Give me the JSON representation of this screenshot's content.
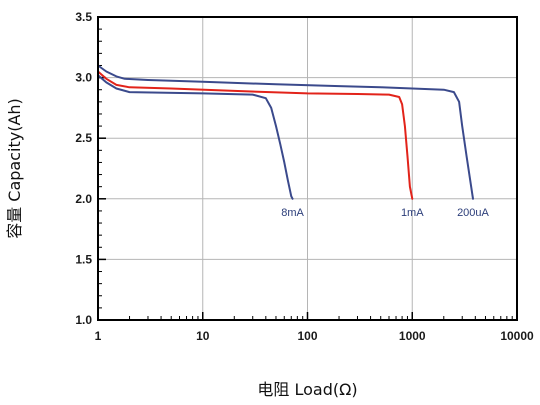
{
  "chart_data": {
    "type": "line",
    "xlabel": "电阻 Load(Ω)",
    "ylabel": "容量 Capacity(Ah)",
    "x_scale": "log",
    "xlim": [
      1,
      10000
    ],
    "ylim": [
      1.0,
      3.5
    ],
    "x_ticks": [
      "1",
      "10",
      "100",
      "1000",
      "10000"
    ],
    "y_ticks": [
      "1.0",
      "1.5",
      "2.0",
      "2.5",
      "3.0",
      "3.5"
    ],
    "grid": true,
    "series": [
      {
        "name": "200uA",
        "label": "200uA",
        "color": "#3b4a8c",
        "points": [
          [
            1,
            3.1
          ],
          [
            1.2,
            3.05
          ],
          [
            1.5,
            3.01
          ],
          [
            1.8,
            2.99
          ],
          [
            3,
            2.98
          ],
          [
            10,
            2.965
          ],
          [
            50,
            2.945
          ],
          [
            200,
            2.93
          ],
          [
            500,
            2.92
          ],
          [
            1000,
            2.91
          ],
          [
            2000,
            2.9
          ],
          [
            2500,
            2.88
          ],
          [
            2800,
            2.8
          ],
          [
            3000,
            2.6
          ],
          [
            3300,
            2.35
          ],
          [
            3800,
            2.0
          ]
        ]
      },
      {
        "name": "1mA",
        "label": "1mA",
        "color": "#e2231a",
        "points": [
          [
            1,
            3.05
          ],
          [
            1.2,
            2.99
          ],
          [
            1.5,
            2.94
          ],
          [
            2,
            2.92
          ],
          [
            5,
            2.91
          ],
          [
            20,
            2.89
          ],
          [
            100,
            2.87
          ],
          [
            300,
            2.865
          ],
          [
            600,
            2.86
          ],
          [
            750,
            2.84
          ],
          [
            800,
            2.78
          ],
          [
            850,
            2.6
          ],
          [
            900,
            2.35
          ],
          [
            950,
            2.1
          ],
          [
            1000,
            2.0
          ]
        ]
      },
      {
        "name": "8mA",
        "label": "8mA",
        "color": "#3b4a8c",
        "points": [
          [
            1,
            3.02
          ],
          [
            1.2,
            2.96
          ],
          [
            1.5,
            2.91
          ],
          [
            2,
            2.88
          ],
          [
            10,
            2.87
          ],
          [
            30,
            2.86
          ],
          [
            40,
            2.83
          ],
          [
            45,
            2.75
          ],
          [
            50,
            2.6
          ],
          [
            55,
            2.45
          ],
          [
            60,
            2.3
          ],
          [
            65,
            2.15
          ],
          [
            70,
            2.02
          ],
          [
            72,
            2.0
          ]
        ]
      }
    ]
  }
}
